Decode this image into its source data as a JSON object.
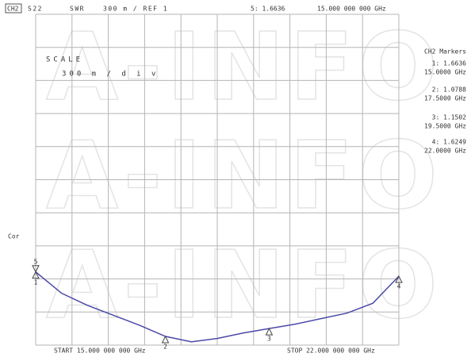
{
  "chart_data": {
    "type": "line",
    "header": {
      "channel": "CH2",
      "parameter": "S22",
      "format": "SWR",
      "scale_ref": "300 m / REF 1",
      "active_marker": "5: 1.6636",
      "active_freq": "15.000 000 000 GHz"
    },
    "scale_title": "SCALE",
    "scale_value": "300 m / d i v",
    "side_label": "Cor",
    "watermark": "A-INFO",
    "start_label": "START 15.000 000 000 GHz",
    "stop_label": "STOP 22.000 000 000 GHz",
    "readout_title": "CH2 Markers",
    "readouts": [
      {
        "value": "1: 1.6636",
        "freq": "15.0000 GHz"
      },
      {
        "value": "2: 1.0788",
        "freq": "17.5000 GHz"
      },
      {
        "value": "3: 1.1502",
        "freq": "19.5000 GHz"
      },
      {
        "value": "4: 1.6249",
        "freq": "22.0000 GHz"
      }
    ],
    "markers": [
      {
        "name": "1",
        "x": 15,
        "value": 1.6636
      },
      {
        "name": "2",
        "x": 17.5,
        "value": 1.0788
      },
      {
        "name": "3",
        "x": 19.5,
        "value": 1.1502
      },
      {
        "name": "4",
        "x": 22,
        "value": 1.6249
      },
      {
        "name": "5",
        "x": 15,
        "value": 1.6636
      }
    ],
    "x": [
      15,
      15.5,
      16,
      16.5,
      17,
      17.5,
      18,
      18.5,
      19,
      19.5,
      20,
      20.5,
      21,
      21.5,
      22
    ],
    "values": [
      1.6636,
      1.47,
      1.36,
      1.27,
      1.18,
      1.0788,
      1.03,
      1.06,
      1.11,
      1.1502,
      1.19,
      1.24,
      1.29,
      1.38,
      1.6249
    ],
    "color": "#4a4aa8",
    "xlim": [
      15,
      22
    ],
    "xticks": [
      15,
      15.7,
      16.4,
      17.1,
      17.8,
      18.5,
      19.2,
      19.9,
      20.6,
      21.3,
      22
    ],
    "ylim": [
      1,
      4
    ],
    "yticks": [
      1,
      1.3,
      1.6,
      1.9,
      2.2,
      2.5,
      2.8,
      3.1,
      3.4,
      3.7,
      4
    ],
    "grid": true
  }
}
